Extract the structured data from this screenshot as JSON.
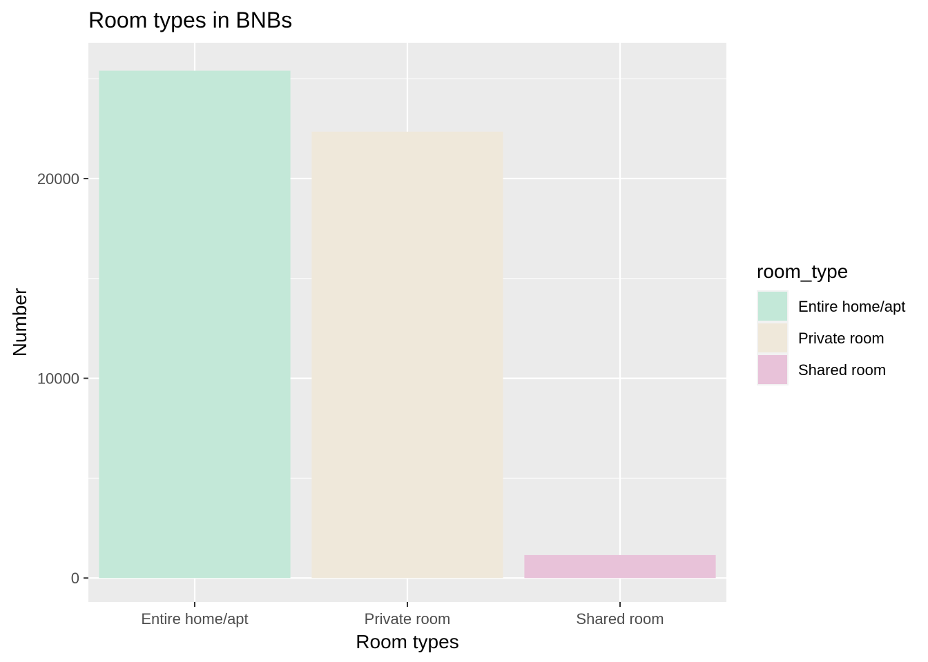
{
  "chart_data": {
    "type": "bar",
    "title": "Room types in BNBs",
    "xlabel": "Room types",
    "ylabel": "Number",
    "categories": [
      "Entire home/apt",
      "Private room",
      "Shared room"
    ],
    "values": [
      25400,
      22350,
      1150
    ],
    "colors": [
      "#c3e8d8",
      "#efe8da",
      "#e8c2d9"
    ],
    "ylim": [
      -1200,
      26800
    ],
    "yticks": [
      0,
      10000,
      20000
    ],
    "ytick_labels": [
      "0",
      "10000",
      "20000"
    ],
    "grid": true,
    "panel_background": "#ebebeb",
    "grid_color": "#ffffff",
    "legend": {
      "title": "room_type",
      "placement": "right",
      "entries": [
        "Entire home/apt",
        "Private room",
        "Shared room"
      ]
    }
  }
}
